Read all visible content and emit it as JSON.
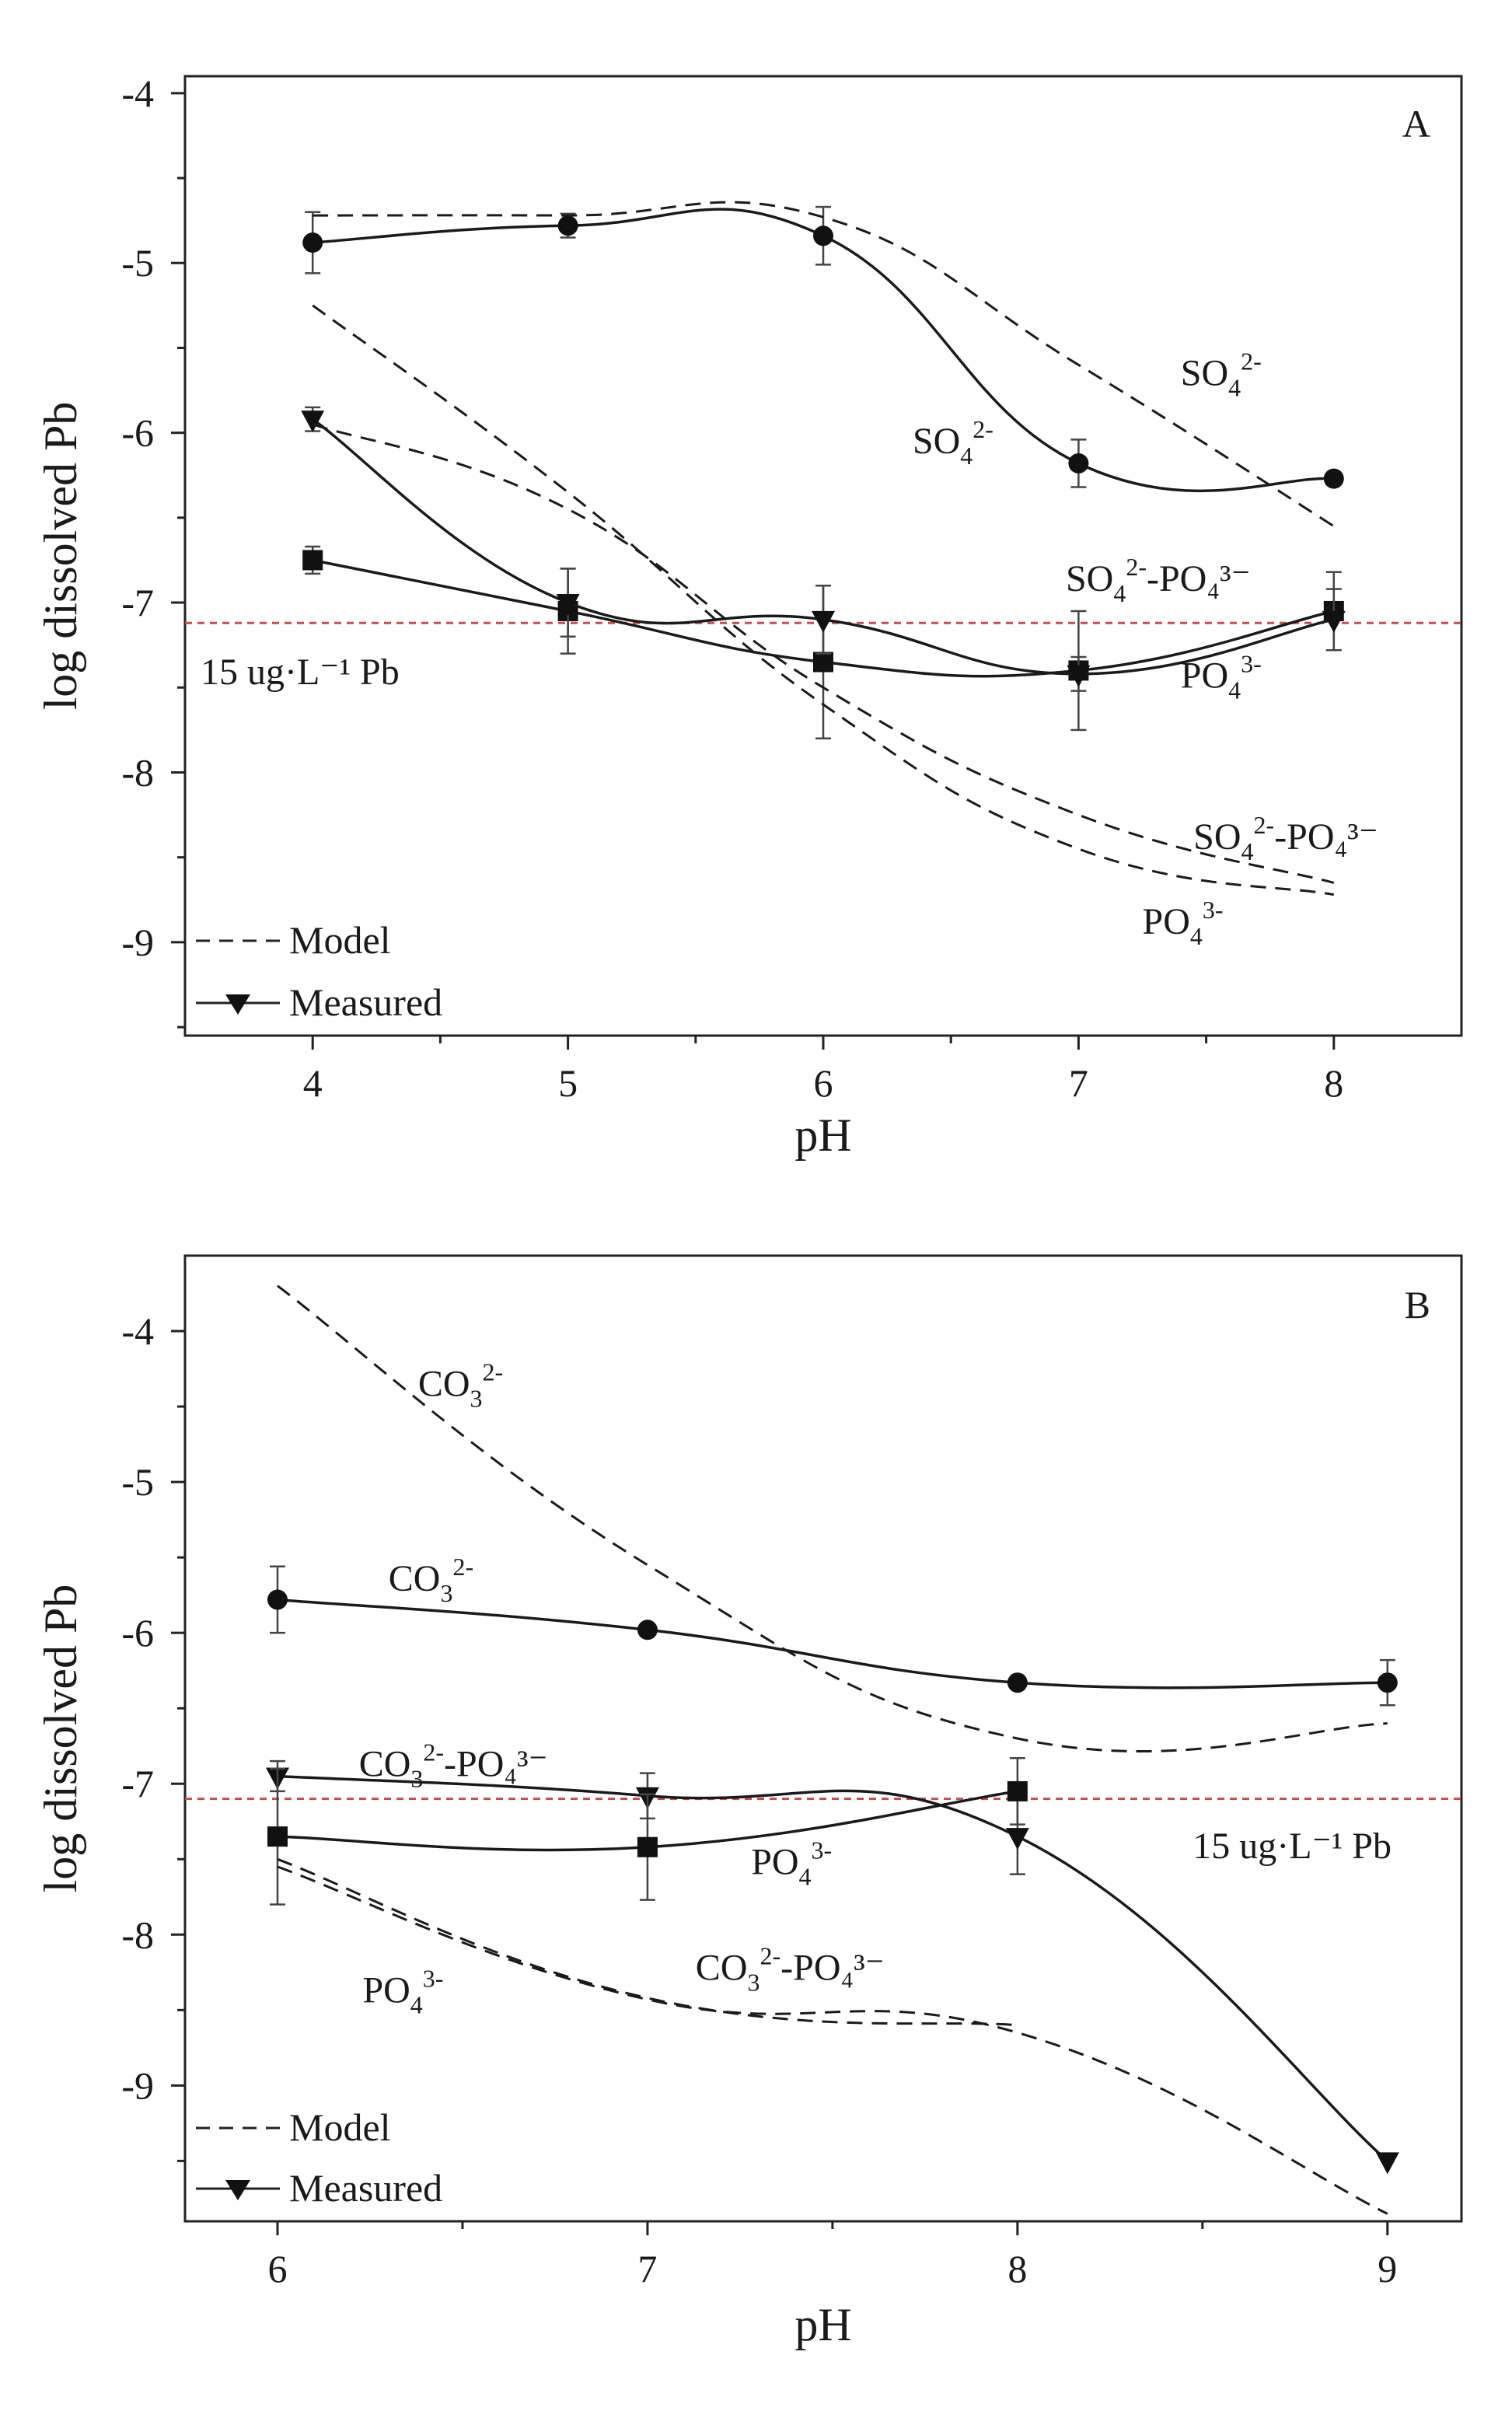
{
  "chart_data": [
    {
      "type": "line",
      "panel_label": "A",
      "xlabel": "pH",
      "ylabel": "log dissolved Pb",
      "xlim": [
        3.5,
        8.5
      ],
      "ylim": [
        -9.55,
        -3.9
      ],
      "xticks": [
        4,
        5,
        6,
        7,
        8
      ],
      "yticks": [
        -9,
        -8,
        -7,
        -6,
        -5,
        -4
      ],
      "x_tick_labels": [
        "4",
        "5",
        "6",
        "7",
        "8"
      ],
      "y_tick_labels": [
        "-9",
        "-8",
        "-7",
        "-6",
        "-5",
        "-4"
      ],
      "reference_line": {
        "value": -7.12,
        "label": "15 ug·L⁻¹ Pb",
        "color": "#c0504d"
      },
      "legend": {
        "position": "bottom-left",
        "entries": [
          {
            "label": "Model",
            "style": "dashed"
          },
          {
            "label": "Measured",
            "style": "solid-marker"
          }
        ]
      },
      "series": [
        {
          "name": "SO4 2- measured",
          "style": "solid",
          "marker": "circle",
          "x": [
            4,
            5,
            6,
            7,
            8
          ],
          "y": [
            -4.88,
            -4.78,
            -4.84,
            -6.18,
            -6.27
          ],
          "err": [
            0.18,
            0.07,
            0.17,
            0.14,
            0.03
          ]
        },
        {
          "name": "PO4 3- measured",
          "style": "solid",
          "marker": "square",
          "x": [
            4,
            5,
            6,
            7,
            8
          ],
          "y": [
            -6.75,
            -7.05,
            -7.35,
            -7.4,
            -7.05
          ],
          "err": [
            0.08,
            0.25,
            0.45,
            0.35,
            0.23
          ]
        },
        {
          "name": "SO4 2- -PO4 3- measured",
          "style": "solid",
          "marker": "triangle",
          "x": [
            4,
            5,
            6,
            7,
            8
          ],
          "y": [
            -5.92,
            -7.0,
            -7.1,
            -7.42,
            -7.1
          ],
          "err": [
            0.07,
            0.2,
            0.2,
            0.1,
            0.18
          ]
        },
        {
          "name": "SO4 2- model",
          "style": "dashed",
          "x": [
            4,
            5,
            6,
            7,
            8
          ],
          "y": [
            -4.72,
            -4.72,
            -4.73,
            -5.6,
            -6.55
          ]
        },
        {
          "name": "SO4 2- -PO4 3- model",
          "style": "dashed",
          "x": [
            4,
            5,
            6,
            7,
            8
          ],
          "y": [
            -5.95,
            -6.45,
            -7.5,
            -8.25,
            -8.65
          ]
        },
        {
          "name": "PO4 3- model",
          "style": "dashed",
          "x": [
            4,
            5,
            6,
            7,
            8
          ],
          "y": [
            -5.25,
            -6.35,
            -7.6,
            -8.45,
            -8.72
          ]
        }
      ],
      "annotations": [
        {
          "base": "SO",
          "sub": "4",
          "sup": "2-",
          "rest": "",
          "x": 7.4,
          "y": -5.72
        },
        {
          "base": "SO",
          "sub": "4",
          "sup": "2-",
          "rest": "",
          "x": 6.35,
          "y": -6.12
        },
        {
          "base": "SO",
          "sub": "4",
          "sup": "2-",
          "rest": "-PO₄³⁻",
          "x": 6.95,
          "y": -6.93
        },
        {
          "base": "PO",
          "sub": "4",
          "sup": "3-",
          "rest": "",
          "x": 7.4,
          "y": -7.5
        },
        {
          "base": "SO",
          "sub": "4",
          "sup": "2-",
          "rest": "-PO₄³⁻",
          "x": 7.45,
          "y": -8.45
        },
        {
          "base": "PO",
          "sub": "4",
          "sup": "3-",
          "rest": "",
          "x": 7.25,
          "y": -8.95
        }
      ]
    },
    {
      "type": "line",
      "panel_label": "B",
      "xlabel": "pH",
      "ylabel": "log dissolved Pb",
      "xlim": [
        5.75,
        9.2
      ],
      "ylim": [
        -9.9,
        -3.5
      ],
      "xticks": [
        6,
        7,
        8,
        9
      ],
      "yticks": [
        -9,
        -8,
        -7,
        -6,
        -5,
        -4
      ],
      "x_tick_labels": [
        "6",
        "7",
        "8",
        "9"
      ],
      "y_tick_labels": [
        "-9",
        "-8",
        "-7",
        "-6",
        "-5",
        "-4"
      ],
      "reference_line": {
        "value": -7.1,
        "label": "15 ug·L⁻¹ Pb",
        "color": "#c0504d"
      },
      "legend": {
        "position": "bottom-left",
        "entries": [
          {
            "label": "Model",
            "style": "dashed"
          },
          {
            "label": "Measured",
            "style": "solid-marker"
          }
        ]
      },
      "series": [
        {
          "name": "CO3 2- measured",
          "style": "solid",
          "marker": "circle",
          "x": [
            6,
            7,
            8,
            9
          ],
          "y": [
            -5.78,
            -5.98,
            -6.33,
            -6.33
          ],
          "err": [
            0.22,
            0.02,
            0.02,
            0.15
          ]
        },
        {
          "name": "CO3 2- -PO4 3- measured",
          "style": "solid",
          "marker": "triangle",
          "x": [
            6,
            7,
            8,
            9
          ],
          "y": [
            -6.95,
            -7.08,
            -7.35,
            -9.5
          ],
          "err": [
            0.1,
            0.15,
            0.25,
            0.02
          ]
        },
        {
          "name": "PO4 3- measured",
          "style": "solid",
          "marker": "square",
          "x": [
            6,
            7,
            8
          ],
          "y": [
            -7.35,
            -7.42,
            -7.05
          ],
          "err": [
            0.45,
            0.35,
            0.22
          ]
        },
        {
          "name": "CO3 2- model",
          "style": "dashed",
          "x": [
            6,
            7,
            8,
            9
          ],
          "y": [
            -3.7,
            -5.55,
            -6.7,
            -6.6
          ]
        },
        {
          "name": "PO4 3- model",
          "style": "dashed",
          "x": [
            6,
            7,
            8,
            9
          ],
          "y": [
            -7.55,
            -8.43,
            -8.65,
            -9.85
          ]
        },
        {
          "name": "CO3 2- -PO4 3- model",
          "style": "dashed",
          "x": [
            6,
            7,
            8
          ],
          "y": [
            -7.5,
            -8.42,
            -8.6
          ]
        }
      ],
      "annotations": [
        {
          "base": "CO",
          "sub": "3",
          "sup": "2-",
          "rest": "",
          "x": 6.38,
          "y": -4.43
        },
        {
          "base": "CO",
          "sub": "3",
          "sup": "2-",
          "rest": "",
          "x": 6.3,
          "y": -5.72
        },
        {
          "base": "CO",
          "sub": "3",
          "sup": "2-",
          "rest": "-PO₄³⁻",
          "x": 6.22,
          "y": -6.95
        },
        {
          "base": "PO",
          "sub": "4",
          "sup": "3-",
          "rest": "",
          "x": 7.28,
          "y": -7.6
        },
        {
          "base": "PO",
          "sub": "4",
          "sup": "3-",
          "rest": "",
          "x": 6.23,
          "y": -8.45
        },
        {
          "base": "CO",
          "sub": "3",
          "sup": "2-",
          "rest": "-PO₄³⁻",
          "x": 7.13,
          "y": -8.3
        }
      ]
    }
  ]
}
